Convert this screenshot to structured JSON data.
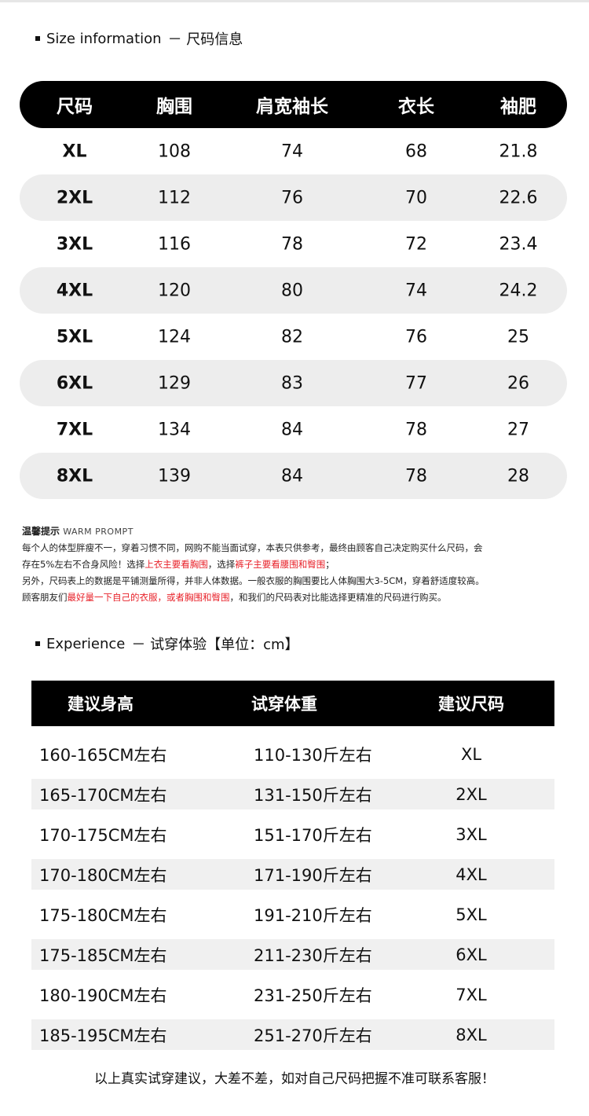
{
  "size_section": {
    "title_en": "Size information",
    "title_cn": "－ 尺码信息",
    "headers": [
      "尺码",
      "胸围",
      "肩宽袖长",
      "衣长",
      "袖肥"
    ],
    "rows": [
      [
        "XL",
        "108",
        "74",
        "68",
        "21.8"
      ],
      [
        "2XL",
        "112",
        "76",
        "70",
        "22.6"
      ],
      [
        "3XL",
        "116",
        "78",
        "72",
        "23.4"
      ],
      [
        "4XL",
        "120",
        "80",
        "74",
        "24.2"
      ],
      [
        "5XL",
        "124",
        "82",
        "76",
        "25"
      ],
      [
        "6XL",
        "129",
        "83",
        "77",
        "26"
      ],
      [
        "7XL",
        "134",
        "84",
        "78",
        "27"
      ],
      [
        "8XL",
        "139",
        "84",
        "78",
        "28"
      ]
    ]
  },
  "warm_prompt": {
    "title_cn": "温馨提示",
    "title_en": "WARM PROMPT",
    "l1": "每个人的体型胖瘦不一，穿着习惯不同，网购不能当面试穿，本表只供参考，最终由顾客自己决定购买什么尺码，会",
    "l2a": "存在5%左右不合身风险！选择",
    "l2b": "上衣主要看胸围",
    "l2c": "，选择",
    "l2d": "裤子主要看腰围和臀围",
    "l2e": "；",
    "l3": "另外，尺码表上的数据是平铺测量所得，并非人体数据。一般衣服的胸围要比人体胸围大3-5CM，穿着舒适度较高。",
    "l4a": "顾客朋友们",
    "l4b": "最好量一下自己的衣服",
    "l4c": "，或者胸围和臀围",
    "l4d": "，和我们的尺码表对比能选择更精准的尺码进行购买。"
  },
  "experience": {
    "title_en": "Experience",
    "title_cn": "－ 试穿体验【单位：cm】",
    "headers": [
      "建议身高",
      "试穿体重",
      "建议尺码"
    ],
    "rows": [
      [
        "160-165CM左右",
        "110-130斤左右",
        "XL"
      ],
      [
        "165-170CM左右",
        "131-150斤左右",
        "2XL"
      ],
      [
        "170-175CM左右",
        "151-170斤左右",
        "3XL"
      ],
      [
        "170-180CM左右",
        "171-190斤左右",
        "4XL"
      ],
      [
        "175-180CM左右",
        "191-210斤左右",
        "5XL"
      ],
      [
        "175-185CM左右",
        "211-230斤左右",
        "6XL"
      ],
      [
        "180-190CM左右",
        "231-250斤左右",
        "7XL"
      ],
      [
        "185-195CM左右",
        "251-270斤左右",
        "8XL"
      ]
    ],
    "footer": "以上真实试穿建议，大差不差，如对自己尺码把握不准可联系客服！"
  },
  "colors": {
    "highlight": "#e8222a",
    "header_bg": "#000000",
    "alt_row": "#ededed"
  }
}
